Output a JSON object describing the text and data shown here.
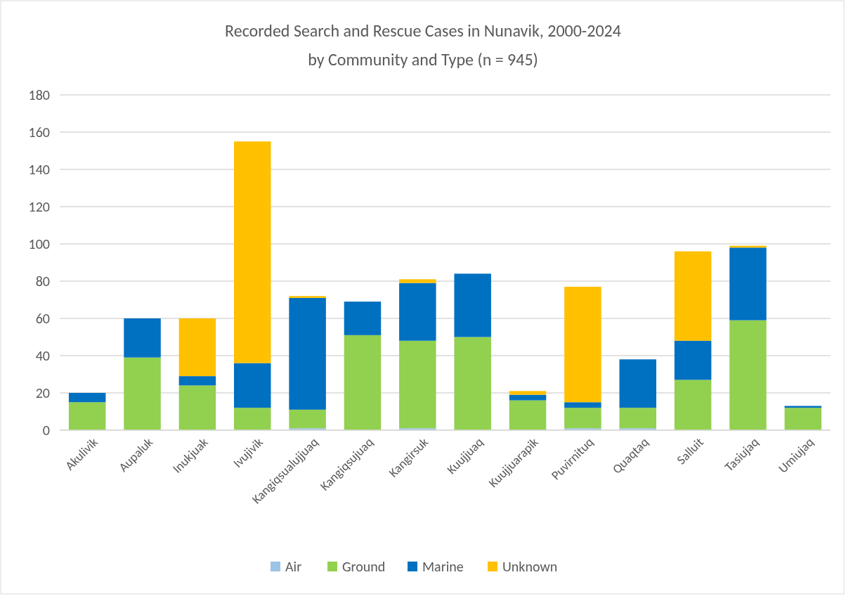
{
  "chart_data": {
    "type": "bar",
    "title": "Recorded Search and Rescue Cases in Nunavik, 2000-2024",
    "subtitle": "by Community and Type (n = 945)",
    "categories": [
      "Akulivik",
      "Aupaluk",
      "Inukjuak",
      "Ivujivik",
      "Kangiqsualujjuaq",
      "Kangiqsujuaq",
      "Kangirsuk",
      "Kuujjuaq",
      "Kuujjuarapik",
      "Puvirnituq",
      "Quaqtaq",
      "Salluit",
      "Tasiujaq",
      "Umiujaq"
    ],
    "series": [
      {
        "name": "Air",
        "color": "#9dc3e6",
        "values": [
          0,
          0,
          0,
          0,
          1,
          0,
          1,
          0,
          0,
          1,
          1,
          0,
          0,
          0
        ]
      },
      {
        "name": "Ground",
        "color": "#92d050",
        "values": [
          15,
          39,
          24,
          12,
          10,
          51,
          47,
          50,
          16,
          11,
          11,
          27,
          59,
          12
        ]
      },
      {
        "name": "Marine",
        "color": "#0070c0",
        "values": [
          5,
          21,
          5,
          24,
          60,
          18,
          31,
          34,
          3,
          3,
          26,
          21,
          39,
          1
        ]
      },
      {
        "name": "Unknown",
        "color": "#ffc000",
        "values": [
          0,
          0,
          31,
          119,
          1,
          0,
          2,
          0,
          2,
          62,
          0,
          48,
          1,
          0
        ]
      }
    ],
    "stacked": true,
    "ylim": [
      0,
      180
    ],
    "yticks": [
      0,
      20,
      40,
      60,
      80,
      100,
      120,
      140,
      160,
      180
    ],
    "grid": "y",
    "legend": "bottom"
  }
}
